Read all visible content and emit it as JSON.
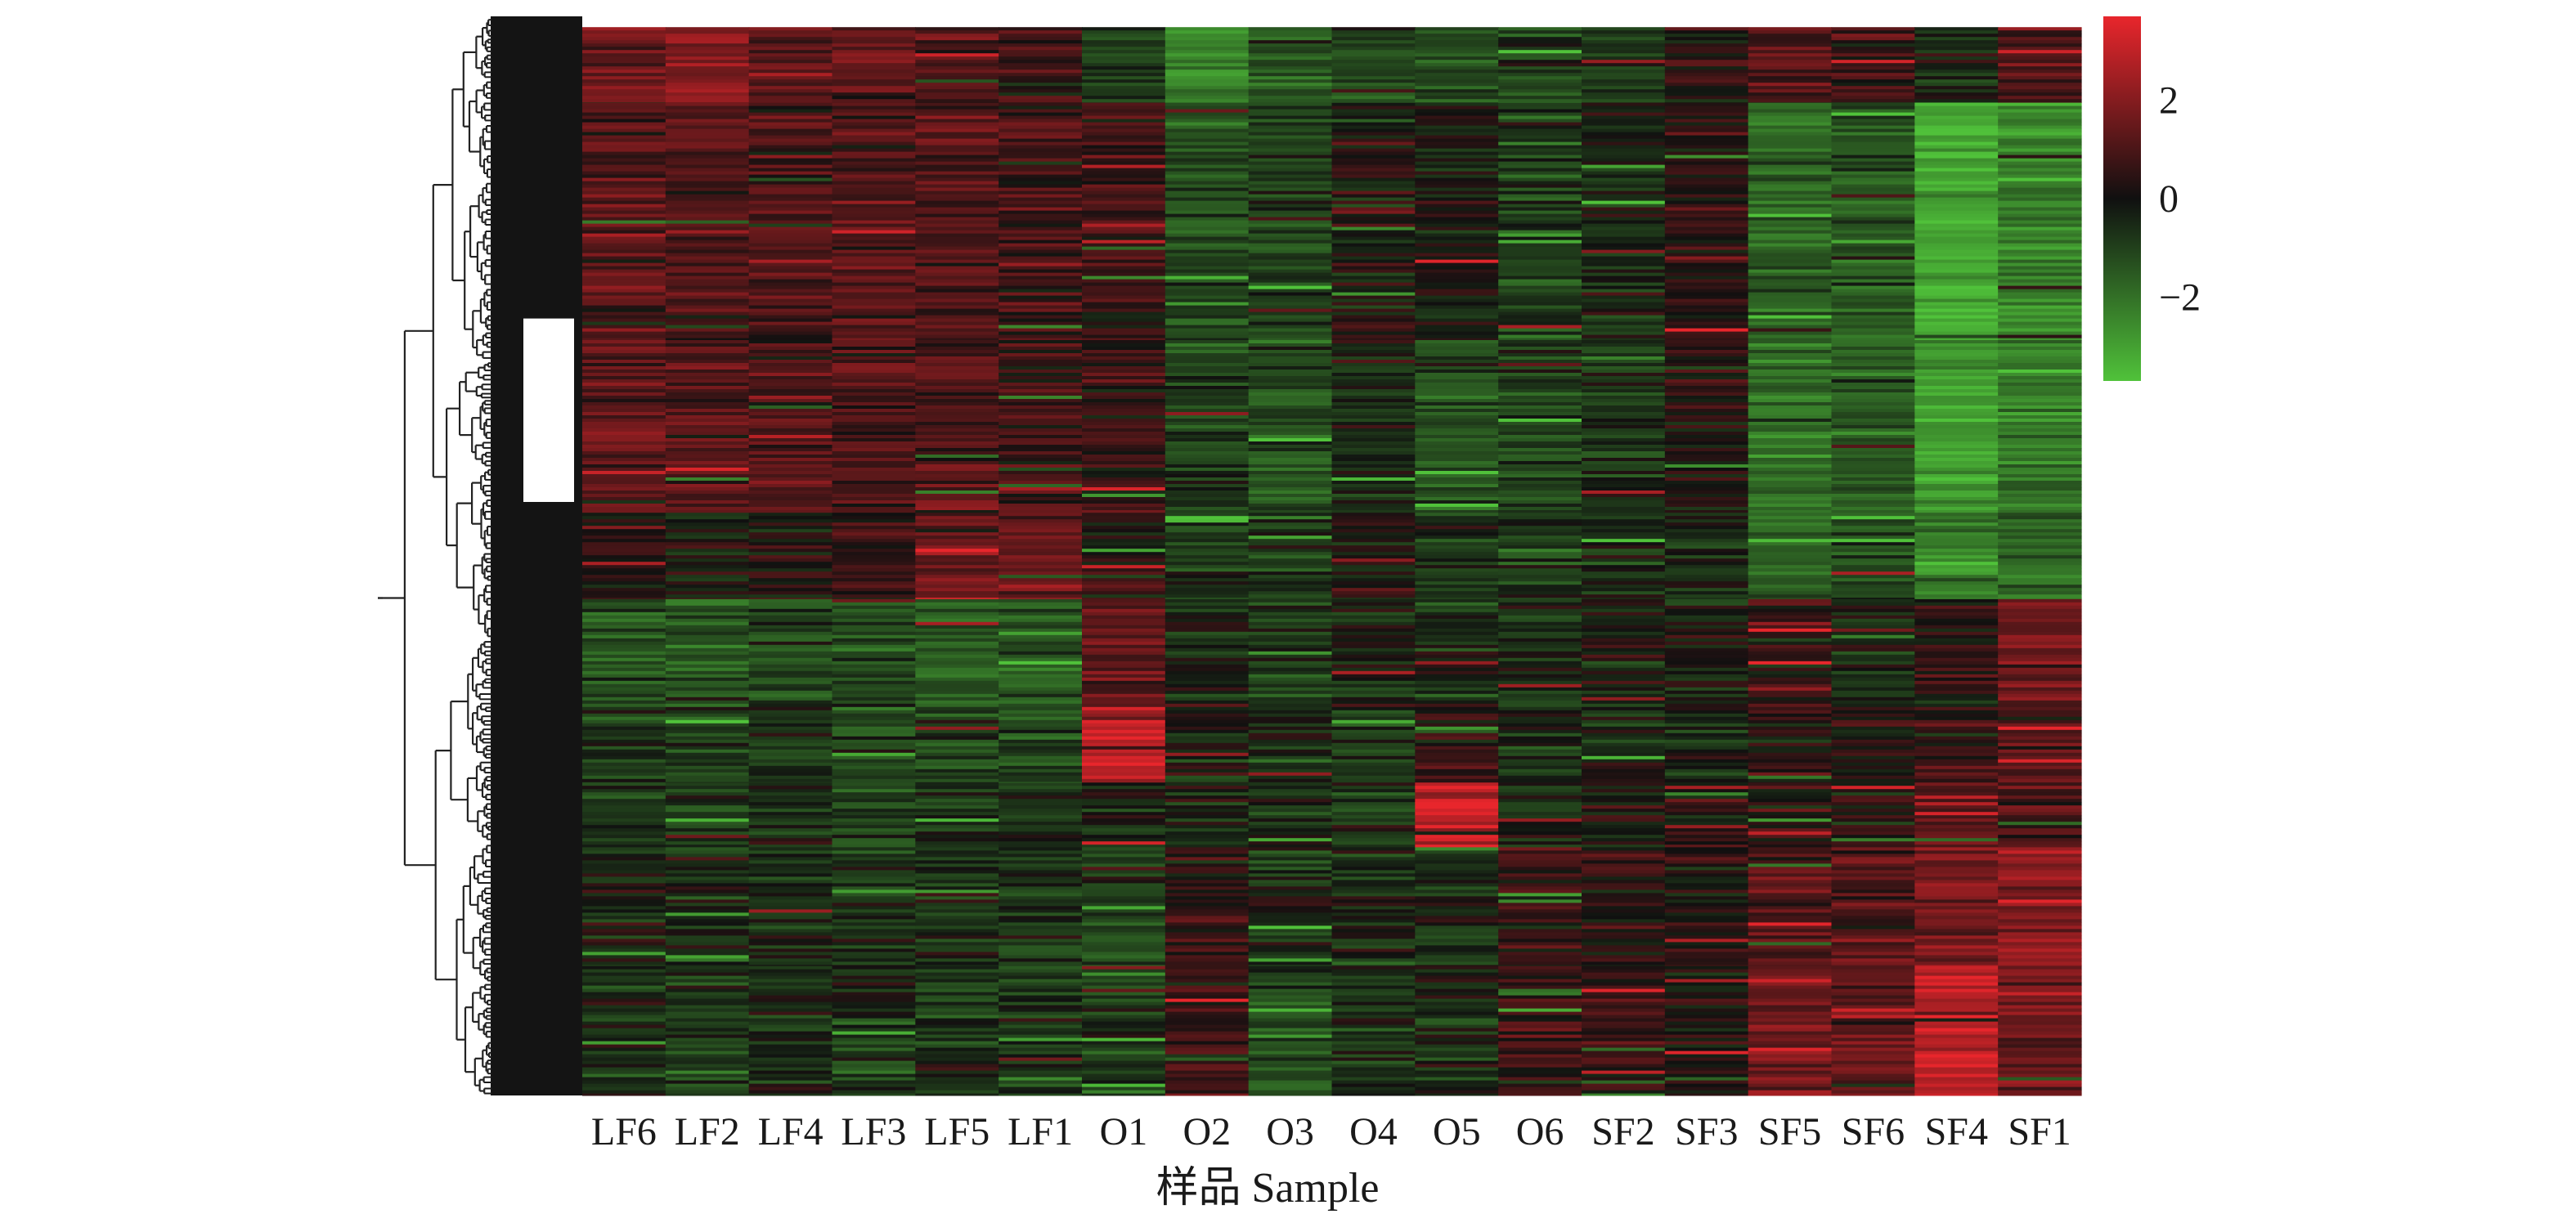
{
  "chart_data": {
    "type": "heatmap",
    "title": "",
    "xlabel": "样品 Sample",
    "ylabel": "",
    "categories": [
      "LF6",
      "LF2",
      "LF4",
      "LF3",
      "LF5",
      "LF1",
      "O1",
      "O2",
      "O3",
      "O4",
      "O5",
      "O6",
      "SF2",
      "SF3",
      "SF5",
      "SF6",
      "SF4",
      "SF1"
    ],
    "row_dendrogram": true,
    "colorbar": {
      "range": [
        -3.7,
        3.7
      ],
      "ticks": [
        2,
        0,
        -2
      ],
      "tick_labels": [
        "2",
        "0",
        "−2"
      ],
      "colors": [
        "#50c23a",
        "#101010",
        "#e8262c"
      ]
    },
    "blocks": [
      {
        "rows": "1-8%",
        "values": [
          1.2,
          1.9,
          1.3,
          1.2,
          0.9,
          0.4,
          -0.8,
          -2.2,
          -1.4,
          -1.0,
          -1.2,
          -0.7,
          -0.6,
          0.3,
          1.0,
          0.6,
          -0.3,
          0.7
        ]
      },
      {
        "rows": "8-30%",
        "values": [
          1.0,
          0.9,
          0.9,
          0.8,
          0.9,
          0.6,
          0.5,
          -0.9,
          -0.8,
          0.1,
          0.0,
          -0.8,
          -0.3,
          0.3,
          -1.6,
          -1.3,
          -3.0,
          -2.3
        ]
      },
      {
        "rows": "30-46%",
        "values": [
          1.0,
          0.9,
          0.9,
          0.8,
          0.8,
          0.5,
          0.4,
          -0.8,
          -1.1,
          -0.4,
          -1.2,
          -0.8,
          -0.5,
          0.2,
          -1.8,
          -1.4,
          -2.8,
          -2.0
        ]
      },
      {
        "rows": "46-54%",
        "values": [
          0.3,
          -0.1,
          0.2,
          0.5,
          1.5,
          1.2,
          0.1,
          -0.7,
          -0.6,
          0.2,
          -0.5,
          -0.5,
          -0.4,
          -0.3,
          -1.4,
          -1.2,
          -2.2,
          -1.5
        ]
      },
      {
        "rows": "54-64%",
        "values": [
          -1.2,
          -1.2,
          -1.0,
          -1.0,
          -1.3,
          -1.2,
          1.0,
          -0.2,
          -0.5,
          -0.2,
          -0.3,
          -0.5,
          -0.3,
          -0.2,
          0.4,
          -0.4,
          0.3,
          1.4
        ]
      },
      {
        "rows": "64-71%",
        "values": [
          -0.6,
          -0.6,
          -0.5,
          -0.8,
          -0.8,
          -0.9,
          3.0,
          -0.1,
          -0.3,
          -0.6,
          0.4,
          -0.4,
          -0.2,
          -0.3,
          0.3,
          0.2,
          0.6,
          1.0
        ]
      },
      {
        "rows": "71-77%",
        "values": [
          -0.5,
          -0.6,
          -0.5,
          -0.7,
          -0.6,
          -0.8,
          -0.3,
          -0.4,
          -0.4,
          -0.6,
          3.0,
          -0.5,
          0.0,
          -0.1,
          0.5,
          0.3,
          0.9,
          1.1
        ]
      },
      {
        "rows": "77-88%",
        "values": [
          -0.2,
          -0.3,
          -0.3,
          -0.5,
          -0.4,
          -0.5,
          -0.8,
          0.3,
          -0.4,
          -0.4,
          -0.3,
          0.4,
          0.3,
          0.1,
          1.1,
          0.8,
          1.6,
          1.8
        ]
      },
      {
        "rows": "88-100%",
        "values": [
          -0.4,
          -0.6,
          -0.4,
          -0.6,
          -0.5,
          -0.7,
          -0.6,
          0.6,
          -0.9,
          -0.6,
          -0.4,
          0.5,
          0.6,
          0.2,
          1.4,
          1.2,
          2.8,
          1.5
        ]
      }
    ]
  }
}
